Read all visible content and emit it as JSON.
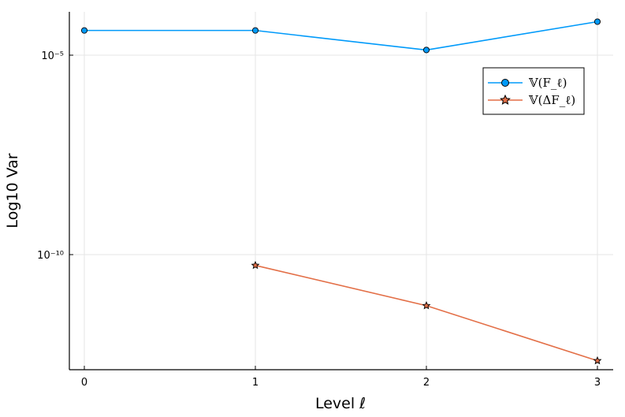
{
  "chart_data": {
    "type": "line",
    "xlabel": "Level ℓ",
    "ylabel": "Log10 Var",
    "y_scale": "log10",
    "x_ticks": [
      0,
      1,
      2,
      3
    ],
    "y_ticks": [
      {
        "value": -5,
        "label": "10⁻⁵"
      },
      {
        "value": -10,
        "label": "10⁻¹⁰"
      }
    ],
    "grid": true,
    "legend_position": "top-right",
    "series": [
      {
        "name": "𝕍(F_ℓ)",
        "marker": "circle",
        "color": "#009AFA",
        "x": [
          0,
          1,
          2,
          3
        ],
        "log10_y": [
          -4.38,
          -4.38,
          -4.87,
          -4.16
        ]
      },
      {
        "name": "𝕍(ΔF_ℓ)",
        "marker": "star",
        "color": "#E36F47",
        "x": [
          1,
          2,
          3
        ],
        "log10_y": [
          -10.27,
          -11.28,
          -12.66
        ]
      }
    ]
  }
}
